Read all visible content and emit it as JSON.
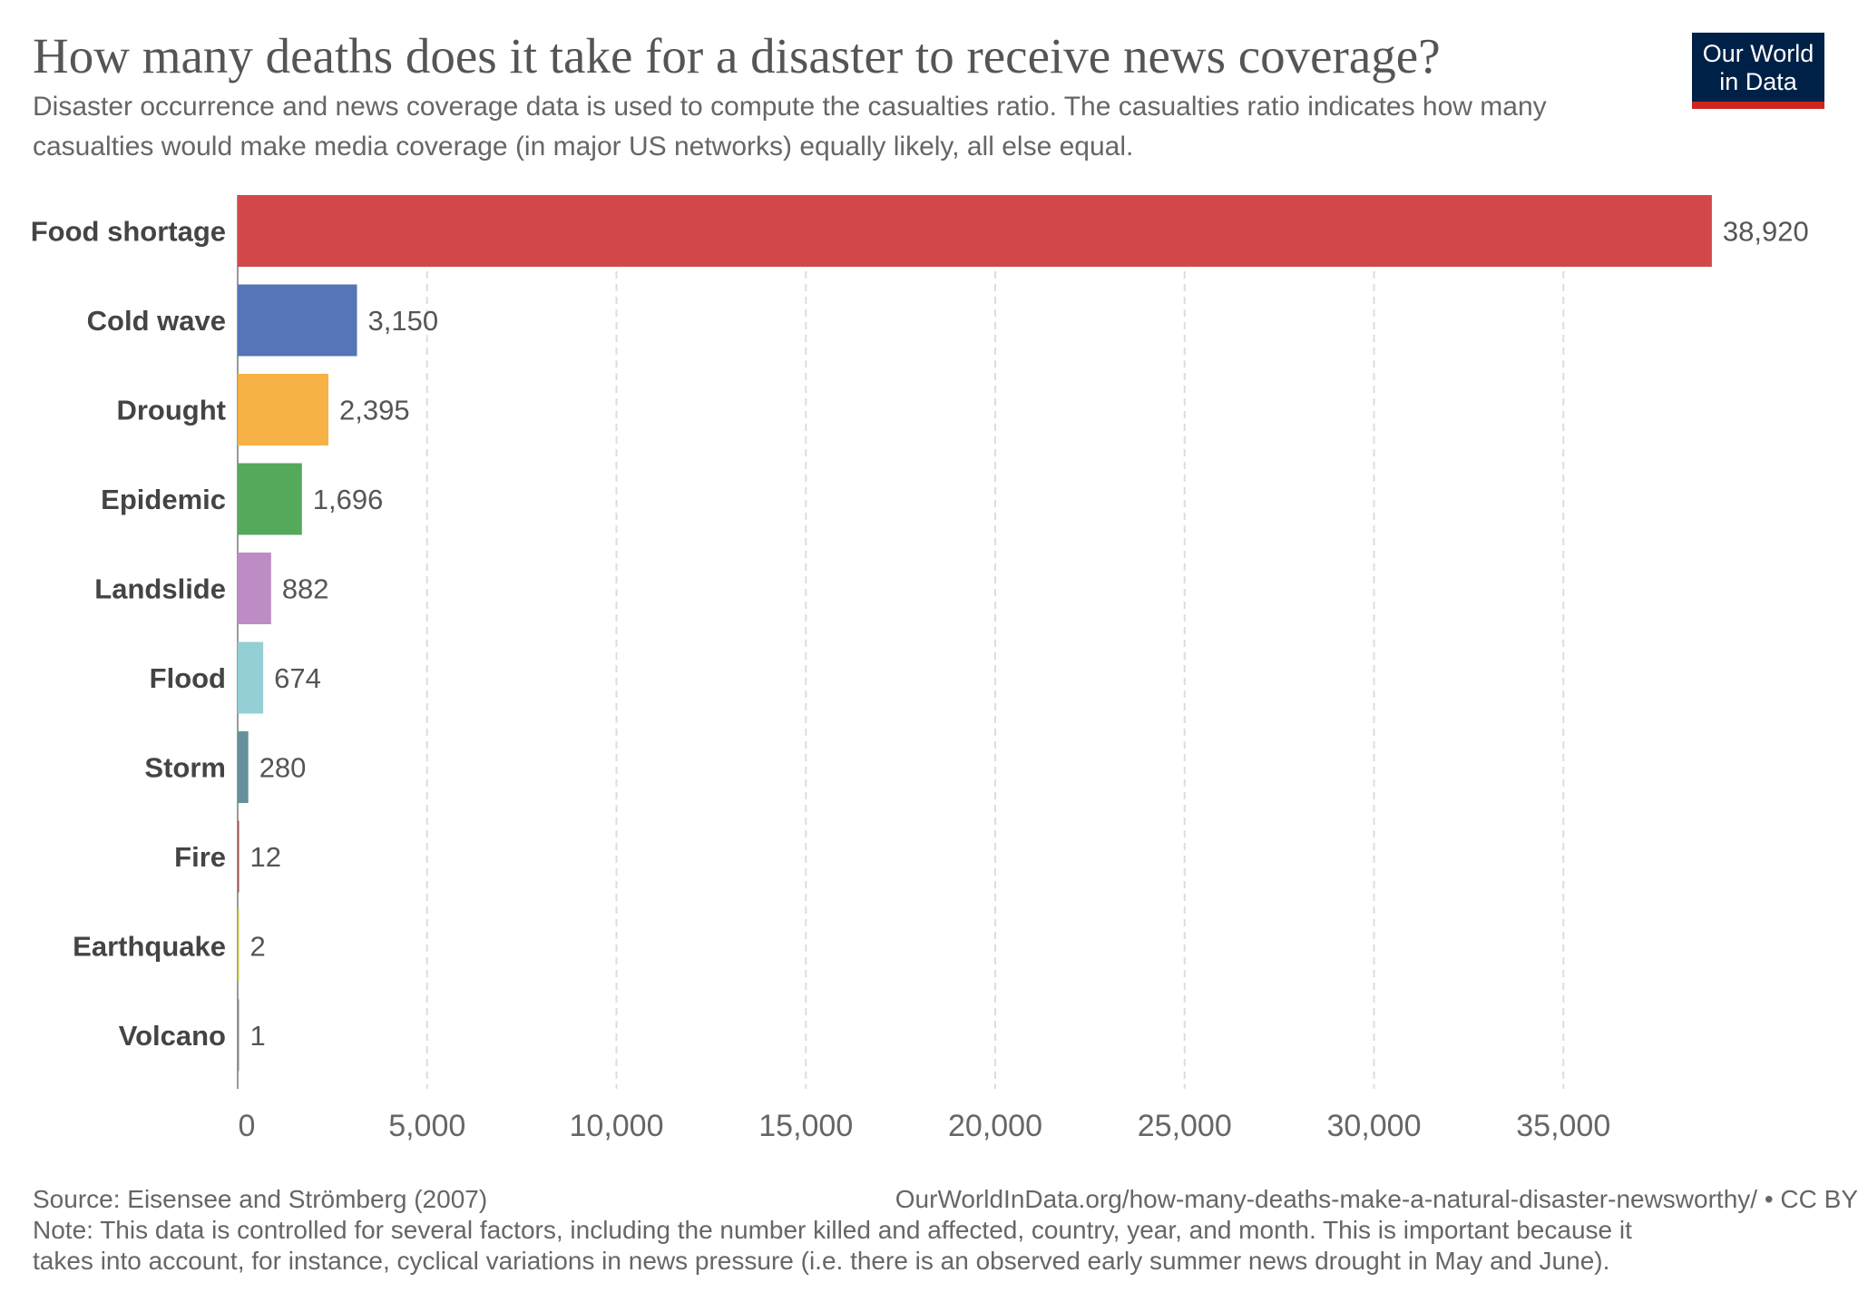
{
  "header": {
    "title": "How many deaths does it take for a disaster to receive news coverage?",
    "subtitle": "Disaster occurrence and news coverage data is used to compute the casualties ratio. The casualties ratio indicates how many casualties would make media coverage (in major US networks) equally likely, all else equal.",
    "logo_line1": "Our World",
    "logo_line2": "in Data"
  },
  "footer": {
    "source": "Source: Eisensee and Strömberg (2007)",
    "url": "OurWorldInData.org/how-many-deaths-make-a-natural-disaster-newsworthy/ • CC BY",
    "note_line1": "Note: This data is controlled for several factors, including the number killed and affected, country, year, and month. This is important because it",
    "note_line2": "takes into account, for instance, cyclical variations in news pressure (i.e. there is an observed early summer news drought in May and June)."
  },
  "chart_data": {
    "type": "bar",
    "orientation": "horizontal",
    "title": "How many deaths does it take for a disaster to receive news coverage?",
    "xlabel": "",
    "ylabel": "",
    "xlim": [
      0,
      40000
    ],
    "xticks": [
      0,
      5000,
      10000,
      15000,
      20000,
      25000,
      30000,
      35000
    ],
    "xtick_labels": [
      "0",
      "5,000",
      "10,000",
      "15,000",
      "20,000",
      "25,000",
      "30,000",
      "35,000"
    ],
    "grid": "vertical dashed",
    "categories": [
      "Food shortage",
      "Cold wave",
      "Drought",
      "Epidemic",
      "Landslide",
      "Flood",
      "Storm",
      "Fire",
      "Earthquake",
      "Volcano"
    ],
    "values": [
      38920,
      3150,
      2395,
      1696,
      882,
      674,
      280,
      12,
      2,
      1
    ],
    "value_labels": [
      "38,920",
      "3,150",
      "2,395",
      "1,696",
      "882",
      "674",
      "280",
      "12",
      "2",
      "1"
    ],
    "colors": [
      "#d2474a",
      "#5575b6",
      "#f6b245",
      "#55a95b",
      "#be8cc4",
      "#93cfd5",
      "#66919a",
      "#a0524c",
      "#c8c850",
      "#888888"
    ]
  }
}
